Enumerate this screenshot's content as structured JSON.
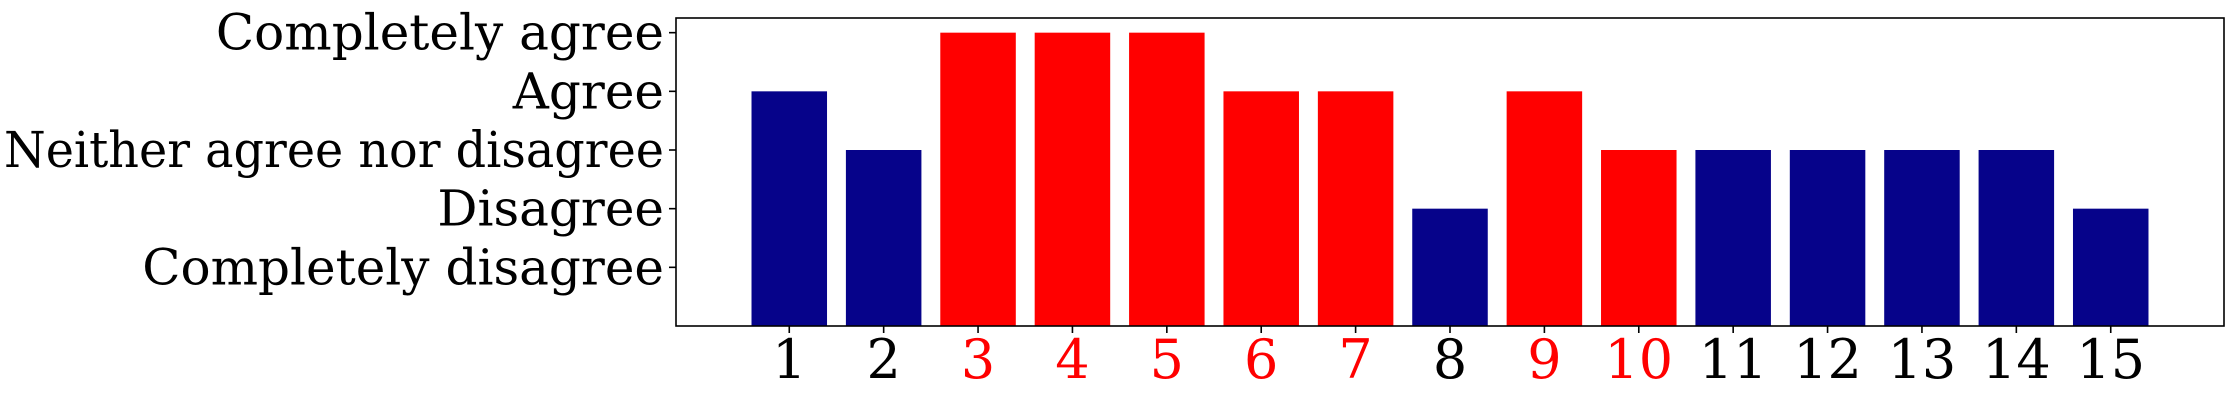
{
  "chart_data": {
    "type": "bar",
    "title": "",
    "xlabel": "",
    "ylabel": "",
    "categories": [
      "1",
      "2",
      "3",
      "4",
      "5",
      "6",
      "7",
      "8",
      "9",
      "10",
      "11",
      "12",
      "13",
      "14",
      "15"
    ],
    "values": [
      4,
      3,
      5,
      5,
      5,
      4,
      4,
      2,
      4,
      3,
      3,
      3,
      3,
      3,
      2
    ],
    "highlighted": [
      false,
      false,
      true,
      true,
      true,
      true,
      true,
      false,
      true,
      true,
      false,
      false,
      false,
      false,
      false
    ],
    "ylim": [
      0,
      5.25
    ],
    "yticks": [
      1,
      2,
      3,
      4,
      5
    ],
    "ytick_labels": [
      "Completely disagree",
      "Disagree",
      "Neither agree nor disagree",
      "Agree",
      "Completely agree"
    ],
    "grid": false,
    "legend": "none",
    "colors": {
      "default_bar": "#06038a",
      "highlight_bar": "#ff0000",
      "default_label": "#000000",
      "highlight_label": "#ff0000",
      "axis": "#000000"
    }
  }
}
